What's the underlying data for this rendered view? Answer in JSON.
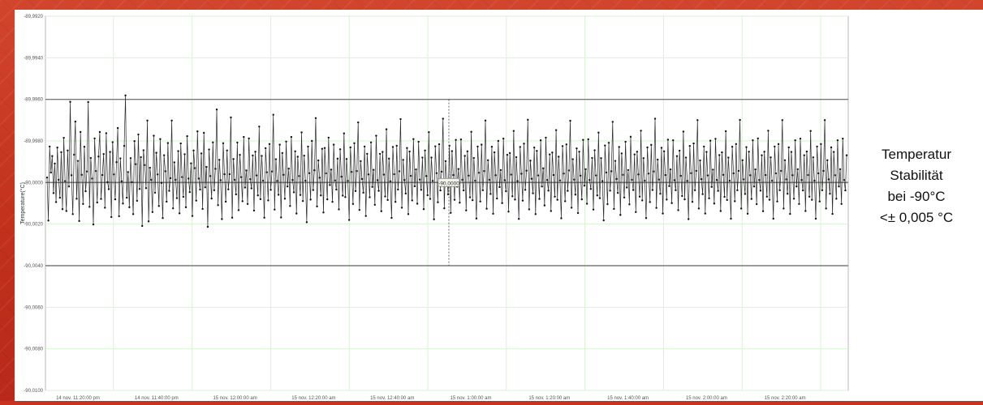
{
  "chart_data": {
    "type": "line",
    "title": "",
    "xlabel": "",
    "ylabel": "Temperature(°C)",
    "ylim": [
      -90.01,
      -89.992
    ],
    "y_ticks": [
      -89.992,
      -89.994,
      -89.996,
      -89.998,
      -90.0,
      -90.002,
      -90.004,
      -90.006,
      -90.008,
      -90.01
    ],
    "y_tick_labels": [
      "-89,9920",
      "-89,9940",
      "-89,9960",
      "-89,9980",
      "-90,0000",
      "-90,0020",
      "-90,0040",
      "-90,0060",
      "-90,0080",
      "-90,0100"
    ],
    "x_tick_labels": [
      "14 nov. 11:20:00 pm",
      "14 nov. 11:40:00 pm",
      "15 nov. 12:00:00 am",
      "15 nov. 12:20:00 am",
      "15 nov. 12:40:00 am",
      "15 nov. 1:00:00 am",
      "15 nov. 1:20:00 am",
      "15 nov. 1:40:00 am",
      "15 nov. 2:00:00 am",
      "15 nov. 2:20:00 am"
    ],
    "reference_lines": [
      {
        "value": -89.996,
        "role": "upper-limit"
      },
      {
        "value": -90.0,
        "role": "setpoint"
      },
      {
        "value": -90.004,
        "role": "lower-limit"
      }
    ],
    "marker_label": "-90,0000",
    "series": [
      {
        "values": [
          -89.99976,
          -90.00183,
          -89.99827,
          -89.99952,
          -89.99873,
          -90.00051,
          -89.99909,
          -90.00094,
          -89.99832,
          -89.99987,
          -90.00073,
          -89.99854,
          -90.00128,
          -89.99785,
          -89.99993,
          -90.00137,
          -89.99846,
          -90.00019,
          -89.99612,
          -89.99965,
          -90.00152,
          -89.99866,
          -89.99707,
          -90.00078,
          -89.99896,
          -90.00185,
          -89.99757,
          -89.99963,
          -90.00103,
          -89.99828,
          -90.00042,
          -89.99947,
          -89.99613,
          -90.00117,
          -89.99882,
          -89.99981,
          -90.00202,
          -89.99788,
          -89.99945,
          -90.00096,
          -89.99875,
          -89.99757,
          -90.00079,
          -89.99964,
          -89.99863,
          -90.00121,
          -89.99763,
          -89.99998,
          -90.00032,
          -89.99853,
          -90.00166,
          -89.99806,
          -89.99961,
          -90.00081,
          -89.99902,
          -89.99738,
          -90.00162,
          -89.99884,
          -89.99994,
          -90.00101,
          -89.99824,
          -89.99581,
          -90.00073,
          -89.9995,
          -90.00119,
          -89.99883,
          -89.99998,
          -90.00152,
          -89.99801,
          -89.99912,
          -90.00088,
          -89.99769,
          -90.00031,
          -89.99878,
          -90.00209,
          -89.99845,
          -89.99916,
          -90.00027,
          -89.99702,
          -90.00187,
          -89.99929,
          -89.99987,
          -90.00142,
          -89.99775,
          -90.00049,
          -89.99857,
          -89.99961,
          -90.00113,
          -89.99791,
          -90.00002,
          -90.00171,
          -89.99869,
          -89.99946,
          -90.00092,
          -89.9981,
          -90.0004,
          -89.99979,
          -89.99702,
          -90.00124,
          -89.99903,
          -89.99987,
          -90.00075,
          -89.99849,
          -90.00148,
          -89.99812,
          -89.99974,
          -90.00069,
          -89.99864,
          -90.00119,
          -89.99777,
          -89.99981,
          -90.00046,
          -89.99908,
          -90.00161,
          -89.99846,
          -89.99931,
          -90.00087,
          -89.99754,
          -89.99981,
          -90.00034,
          -89.9986,
          -90.00127,
          -89.99761,
          -90.00023,
          -89.99925,
          -90.00213,
          -89.99841,
          -89.99969,
          -90.00077,
          -89.99807,
          -90.00037,
          -89.99934,
          -89.99649,
          -90.00109,
          -89.99891,
          -89.99989,
          -90.00176,
          -89.99811,
          -89.9996,
          -90.00092,
          -89.99846,
          -90.00033,
          -89.9996,
          -89.99687,
          -90.00169,
          -89.99887,
          -89.99987,
          -90.00057,
          -89.99808,
          -90.00133,
          -89.99867,
          -89.99974,
          -90.0009,
          -89.99781,
          -90.00024,
          -89.99942,
          -90.00103,
          -89.99788,
          -89.99984,
          -90.00028,
          -89.9987,
          -90.00135,
          -89.99852,
          -89.99966,
          -90.00062,
          -89.99731,
          -90.0008,
          -89.99872,
          -89.99991,
          -90.00169,
          -89.99835,
          -89.99951,
          -90.00086,
          -89.99815,
          -90.00035,
          -89.99947,
          -89.99674,
          -90.0013,
          -89.99888,
          -89.99992,
          -90.00059,
          -89.99818,
          -90.00168,
          -89.99858,
          -89.99963,
          -90.00078,
          -89.99803,
          -90.00019,
          -89.99933,
          -90.00113,
          -89.99781,
          -89.99988,
          -90.00047,
          -89.9985,
          -90.00149,
          -89.99876,
          -89.99969,
          -90.0006,
          -89.99759,
          -90.00089,
          -89.99871,
          -89.99991,
          -90.00191,
          -89.99827,
          -89.99955,
          -90.00082,
          -89.998,
          -90.00036,
          -89.99941,
          -89.9969,
          -90.00115,
          -89.99894,
          -89.99977,
          -90.00062,
          -89.99838,
          -90.00144,
          -89.99834,
          -89.99956,
          -90.00081,
          -89.99784,
          -90.00012,
          -89.99938,
          -90.00093,
          -89.99818,
          -89.9999,
          -90.00034,
          -89.99885,
          -90.00129,
          -89.9984,
          -89.99972,
          -90.00063,
          -89.99764,
          -90.0007,
          -89.99887,
          -89.99992,
          -90.0018,
          -89.99831,
          -89.99949,
          -90.00103,
          -89.99811,
          -90.00041,
          -89.99945,
          -89.99711,
          -90.00132,
          -89.99897,
          -89.99983,
          -90.00049,
          -89.99827,
          -90.00161,
          -89.99862,
          -89.99961,
          -90.00071,
          -89.99807,
          -90.00021,
          -89.99939,
          -90.00107,
          -89.99775,
          -89.99989,
          -90.0004,
          -89.99862,
          -90.00138,
          -89.99853,
          -89.99962,
          -90.00067,
          -89.99744,
          -90.00084,
          -89.99885,
          -89.99994,
          -90.0017,
          -89.99829,
          -89.9996,
          -90.00093,
          -89.99823,
          -90.00034,
          -89.99946,
          -89.99695,
          -90.00121,
          -89.99891,
          -89.99988,
          -90.00053,
          -89.99834,
          -90.00152,
          -89.99851,
          -89.99968,
          -90.00086,
          -89.99791,
          -90.00018,
          -89.99937,
          -90.00102,
          -89.99804,
          -89.99986,
          -90.00035,
          -89.9988,
          -90.00128,
          -89.99846,
          -89.99969,
          -90.00061,
          -89.99758,
          -90.00079,
          -89.9988,
          -89.99992,
          -90.00177,
          -89.99826,
          -89.99955,
          -90.00095,
          -89.99816,
          -90.00038,
          -89.99948,
          -89.99693,
          -90.00124,
          -89.99897,
          -89.99985,
          -90.00057,
          -89.99823,
          -90.00146,
          -89.99849,
          -89.99964,
          -90.00083,
          -89.99795,
          -90.0002,
          -89.99935,
          -90.00097,
          -89.99793,
          -89.99987,
          -90.00038,
          -89.99872,
          -90.00134,
          -89.9985,
          -89.99967,
          -90.00071,
          -89.99756,
          -90.00085,
          -89.99882,
          -89.99991,
          -90.00173,
          -89.99827,
          -89.99953,
          -90.00091,
          -89.99818,
          -90.00037,
          -89.99945,
          -89.99702,
          -90.00126,
          -89.99893,
          -89.99987,
          -90.00055,
          -89.99828,
          -90.0015,
          -89.99855,
          -89.99965,
          -90.00077,
          -89.998,
          -90.00022,
          -89.9994,
          -90.00099,
          -89.99789,
          -89.99989,
          -90.00042,
          -89.99867,
          -90.0014,
          -89.99858,
          -89.99962,
          -90.00066,
          -89.99752,
          -90.00082,
          -89.99878,
          -89.99993,
          -90.00175,
          -89.99829,
          -89.99958,
          -90.00087,
          -89.99813,
          -90.00035,
          -89.99943,
          -89.99698,
          -90.00129,
          -89.99895,
          -89.99982,
          -90.00052,
          -89.99832,
          -90.00152,
          -89.99848,
          -89.99966,
          -90.00079,
          -89.99797,
          -90.00019,
          -89.99932,
          -90.0011,
          -89.99784,
          -89.99988,
          -90.00039,
          -89.99865,
          -90.00137,
          -89.99856,
          -89.99964,
          -90.00068,
          -89.99748,
          -90.00083,
          -89.99876,
          -89.9999,
          -90.00172,
          -89.99825,
          -89.99957,
          -90.0009,
          -89.99817,
          -90.0004,
          -89.99942,
          -89.99703,
          -90.00121,
          -89.99888,
          -89.99986,
          -90.00058,
          -89.99836,
          -90.00147,
          -89.99852,
          -89.99967,
          -90.00081,
          -89.99795,
          -90.00015,
          -89.99936,
          -90.00102,
          -89.99792,
          -89.99988,
          -90.00031,
          -89.99882,
          -90.0013,
          -89.99845,
          -89.99966,
          -90.00062,
          -89.9976,
          -90.00075,
          -89.99883,
          -89.99993,
          -90.00182,
          -89.99822,
          -89.99952,
          -90.00104,
          -89.99809,
          -90.00039,
          -89.99946,
          -89.99708,
          -90.00127,
          -89.99896,
          -89.99983,
          -90.0005,
          -89.99829,
          -90.00156,
          -89.9986,
          -89.99963,
          -90.00072,
          -89.99804,
          -90.00024,
          -89.9994,
          -90.00105,
          -89.9978,
          -89.99987,
          -90.00036,
          -89.99865,
          -90.00142,
          -89.99852,
          -89.99961,
          -90.00068,
          -89.99751,
          -90.00086,
          -89.99883,
          -89.99991,
          -90.00171,
          -89.99831,
          -89.99957,
          -90.00094,
          -89.99819,
          -90.00036,
          -89.99947,
          -89.99693,
          -90.00122,
          -89.9989,
          -89.99986,
          -90.00054,
          -89.99833,
          -90.00149,
          -89.9985,
          -89.99964,
          -90.00082,
          -89.99794,
          -90.00017,
          -89.99937,
          -90.00099,
          -89.99797,
          -89.99989,
          -90.00037,
          -89.99873,
          -90.00133,
          -89.99847,
          -89.99968,
          -90.00065,
          -89.99755,
          -90.00081,
          -89.9988,
          -89.99992,
          -90.00176,
          -89.99824,
          -89.99955,
          -90.00093,
          -89.99812,
          -90.00037,
          -89.99944,
          -89.997,
          -90.00125,
          -89.99894,
          -89.99984,
          -90.00056,
          -89.99827,
          -90.00149,
          -89.99853,
          -89.99966,
          -90.00076,
          -89.99799,
          -90.00021,
          -89.99938,
          -90.00101,
          -89.9979,
          -89.99988,
          -90.0004,
          -89.99868,
          -90.00137,
          -89.99855,
          -89.99963,
          -90.00069,
          -89.99753,
          -90.00084,
          -89.9988,
          -89.99991,
          -90.00174,
          -89.99828,
          -89.99956,
          -90.0009,
          -89.99815,
          -90.00037,
          -89.99944,
          -89.99699,
          -90.00125,
          -89.99893,
          -89.99985,
          -90.00055,
          -89.9983,
          -90.0015,
          -89.99852,
          -89.99965,
          -90.00079,
          -89.99797,
          -90.00019,
          -89.99937,
          -90.00104,
          -89.99788,
          -89.99988,
          -90.00039,
          -89.99869,
          -90.00138,
          -89.99852,
          -89.99964,
          -90.00068,
          -89.99751,
          -90.00083,
          -89.99879,
          -89.99991,
          -90.00174,
          -89.99827,
          -89.99956,
          -90.00091,
          -89.99815,
          -90.00037,
          -89.99944,
          -89.997,
          -90.00125,
          -89.99893,
          -89.99985,
          -90.00054,
          -89.99831,
          -90.00151,
          -89.99853,
          -89.99965,
          -90.00078,
          -89.99797,
          -90.00019,
          -89.99936,
          -90.00103,
          -89.99789,
          -89.99988,
          -90.00038,
          -89.99869,
          -90.00137,
          -89.99851,
          -89.99964,
          -90.00068,
          -89.99752,
          -90.00083,
          -89.99879,
          -89.99991,
          -90.00174,
          -89.99827,
          -89.99956,
          -90.00091,
          -89.99815,
          -90.00037,
          -89.99944,
          -89.997,
          -90.00125,
          -89.99893,
          -89.99985,
          -90.00054,
          -89.99831,
          -90.00151,
          -89.99853,
          -89.99965,
          -90.00078,
          -89.99797,
          -90.00019,
          -89.99936,
          -90.00103,
          -89.99789,
          -89.99988,
          -90.00038,
          -89.99869
        ]
      }
    ]
  },
  "side_caption": {
    "line1": "Temperatur",
    "line2": "Stabilität",
    "line3": "bei -90°C",
    "line4": "<± 0,005 °C"
  }
}
